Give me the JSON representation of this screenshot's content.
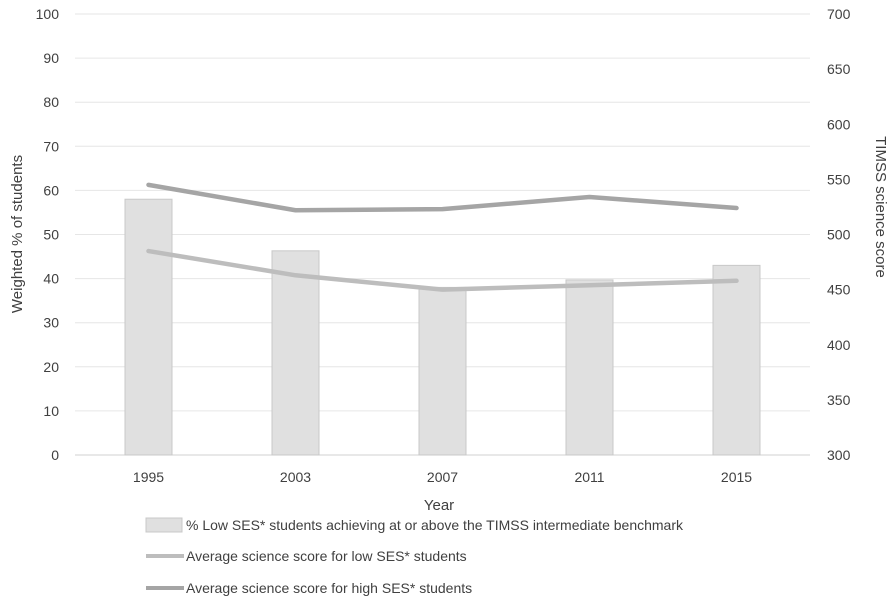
{
  "chart_data": {
    "type": "bar",
    "x_axis_title": "Year",
    "y_left_title": "Weighted % of students",
    "y_right_title": "TIMSS science score",
    "categories": [
      "1995",
      "2003",
      "2007",
      "2011",
      "2015"
    ],
    "y_left_range": [
      0,
      100
    ],
    "y_left_ticks": [
      "0",
      "10",
      "20",
      "30",
      "40",
      "50",
      "60",
      "70",
      "80",
      "90",
      "100"
    ],
    "y_right_range": [
      300,
      700
    ],
    "y_right_ticks": [
      "300",
      "350",
      "400",
      "450",
      "500",
      "550",
      "600",
      "650",
      "700"
    ],
    "grid": true,
    "legend_position": "bottom",
    "series": [
      {
        "name": "% Low SES* students achieving at or above the TIMSS intermediate benchmark",
        "kind": "bar",
        "axis": "left",
        "color": "#e0e0e0",
        "values": [
          58,
          46.3,
          38,
          39.7,
          43
        ]
      },
      {
        "name": "Average science score for low SES* students",
        "kind": "line",
        "axis": "right",
        "color": "#bdbdbd",
        "values": [
          485,
          463,
          450,
          454,
          458
        ]
      },
      {
        "name": "Average science score for high SES* students",
        "kind": "line",
        "axis": "right",
        "color": "#a5a5a5",
        "values": [
          545,
          522,
          523,
          534,
          524
        ]
      }
    ]
  }
}
